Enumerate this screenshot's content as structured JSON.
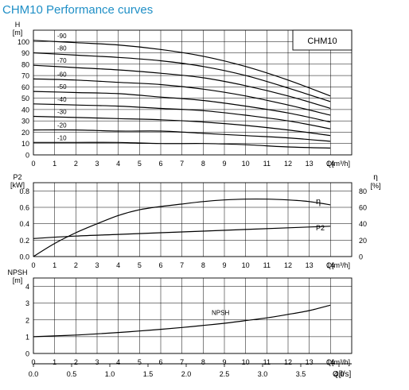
{
  "page_title": "CHM10 Performance curves",
  "colors": {
    "title": "#1f8fc6",
    "lines": "#000000",
    "background": "#ffffff"
  },
  "chart_data": [
    {
      "type": "line",
      "id": "head",
      "xlabel": "Q[m³/h]",
      "ylabel_name": "H",
      "ylabel_unit": "[m]",
      "legend_box": "CHM10",
      "xlim": [
        0,
        15
      ],
      "ylim": [
        0,
        110
      ],
      "x_ticks": [
        0,
        1,
        2,
        3,
        4,
        5,
        6,
        7,
        8,
        9,
        10,
        11,
        12,
        13,
        14
      ],
      "y_ticks": [
        0,
        10,
        20,
        30,
        40,
        50,
        60,
        70,
        80,
        90,
        100
      ],
      "grid": true,
      "series": [
        {
          "name": "-90",
          "x": [
            0,
            2,
            4,
            6,
            8,
            10,
            12,
            14
          ],
          "values": [
            101,
            99,
            97,
            93,
            87,
            78,
            66,
            52
          ]
        },
        {
          "name": "-80",
          "x": [
            0,
            2,
            4,
            6,
            8,
            10,
            12,
            14
          ],
          "values": [
            90,
            88,
            86,
            83,
            78,
            70,
            59,
            47
          ]
        },
        {
          "name": "-70",
          "x": [
            0,
            2,
            4,
            6,
            8,
            10,
            12,
            14
          ],
          "values": [
            79,
            77,
            75,
            72,
            68,
            61,
            52,
            41
          ]
        },
        {
          "name": "-60",
          "x": [
            0,
            2,
            4,
            6,
            8,
            10,
            12,
            14
          ],
          "values": [
            67,
            66,
            64,
            62,
            58,
            52,
            44,
            35
          ]
        },
        {
          "name": "-50",
          "x": [
            0,
            2,
            4,
            6,
            8,
            10,
            12,
            14
          ],
          "values": [
            56,
            55,
            54,
            51,
            48,
            43,
            37,
            29
          ]
        },
        {
          "name": "-40",
          "x": [
            0,
            2,
            4,
            6,
            8,
            10,
            12,
            14
          ],
          "values": [
            45,
            44,
            43,
            41,
            39,
            35,
            30,
            23
          ]
        },
        {
          "name": "-30",
          "x": [
            0,
            2,
            4,
            6,
            8,
            10,
            12,
            14
          ],
          "values": [
            34,
            33,
            32,
            31,
            29,
            26,
            22,
            17
          ]
        },
        {
          "name": "-20",
          "x": [
            0,
            2,
            4,
            6,
            8,
            10,
            12,
            14
          ],
          "values": [
            22,
            22,
            21,
            21,
            19,
            17,
            15,
            12
          ]
        },
        {
          "name": "-10",
          "x": [
            0,
            2,
            4,
            6,
            8,
            10,
            12,
            14
          ],
          "values": [
            11,
            11,
            11,
            10,
            10,
            9,
            7,
            6
          ]
        }
      ]
    },
    {
      "type": "line",
      "id": "power-efficiency",
      "xlabel": "Q[m³/h]",
      "ylabel_name": "P2",
      "ylabel_unit": "[kW]",
      "y2label_name": "η",
      "y2label_unit": "[%]",
      "xlim": [
        0,
        15
      ],
      "ylim": [
        0,
        0.9
      ],
      "y2lim": [
        0,
        90
      ],
      "x_ticks": [
        0,
        1,
        2,
        3,
        4,
        5,
        6,
        7,
        8,
        9,
        10,
        11,
        12,
        13,
        14
      ],
      "y_ticks": [
        0.0,
        0.2,
        0.4,
        0.6,
        0.8
      ],
      "y_tick_labels": [
        "0.0",
        "0.2",
        "0.4",
        "0.6",
        "0.8"
      ],
      "y2_ticks": [
        0,
        20,
        40,
        60,
        80
      ],
      "grid": true,
      "series": [
        {
          "name": "η",
          "axis": "right",
          "x": [
            0,
            1,
            2,
            3,
            4,
            5,
            6,
            7,
            8,
            9,
            10,
            11,
            12,
            13,
            14
          ],
          "values": [
            0,
            16,
            29,
            40,
            50,
            57,
            61,
            64,
            67,
            69,
            70,
            70,
            69,
            67,
            63
          ]
        },
        {
          "name": "P2",
          "axis": "left",
          "x": [
            0,
            2,
            4,
            6,
            8,
            10,
            12,
            14
          ],
          "values": [
            0.22,
            0.25,
            0.27,
            0.29,
            0.31,
            0.33,
            0.35,
            0.37
          ]
        }
      ]
    },
    {
      "type": "line",
      "id": "npsh",
      "xlabel": "Q[m³/h]",
      "ylabel_name": "NPSH",
      "ylabel_unit": "[m]",
      "xlim": [
        0,
        15
      ],
      "ylim": [
        0,
        4.5
      ],
      "x_ticks": [
        0,
        1,
        2,
        3,
        4,
        5,
        6,
        7,
        8,
        9,
        10,
        11,
        12,
        13,
        14
      ],
      "y_ticks": [
        0,
        1,
        2,
        3,
        4
      ],
      "grid": true,
      "series": [
        {
          "name": "NPSH",
          "x": [
            0,
            1,
            2,
            3,
            4,
            5,
            6,
            7,
            8,
            9,
            10,
            11,
            12,
            13,
            14
          ],
          "values": [
            1.0,
            1.05,
            1.1,
            1.17,
            1.25,
            1.34,
            1.44,
            1.55,
            1.67,
            1.8,
            1.96,
            2.12,
            2.33,
            2.56,
            2.88
          ]
        }
      ]
    },
    {
      "type": "axis",
      "id": "flow-ls-axis",
      "xlabel": "Q[l/s]",
      "xlim": [
        0,
        4.1667
      ],
      "x_ticks": [
        0,
        0.5,
        1.0,
        1.5,
        2.0,
        2.5,
        3.0,
        3.5,
        4.0
      ],
      "x_tick_labels": [
        "0.0",
        "0.5",
        "1.0",
        "1.5",
        "2.0",
        "2.5",
        "3.0",
        "3.5",
        "4.0"
      ]
    }
  ]
}
